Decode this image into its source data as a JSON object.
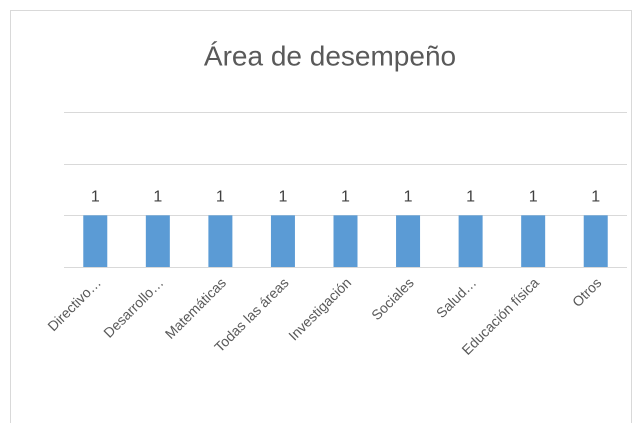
{
  "chart_data": {
    "type": "bar",
    "title": "Área de desempeño",
    "categories": [
      "Directivo…",
      "Desarrollo…",
      "Matemáticas",
      "Todas las áreas",
      "Investigación",
      "Sociales",
      "Salud…",
      "Educación física",
      "Otros"
    ],
    "values": [
      1,
      1,
      1,
      1,
      1,
      1,
      1,
      1,
      1
    ],
    "color": "#5b9bd5",
    "ylim": [
      0,
      3
    ],
    "yticks": [
      0,
      1,
      2,
      3
    ],
    "grid": true,
    "ytick_labels": false,
    "data_labels": true
  }
}
